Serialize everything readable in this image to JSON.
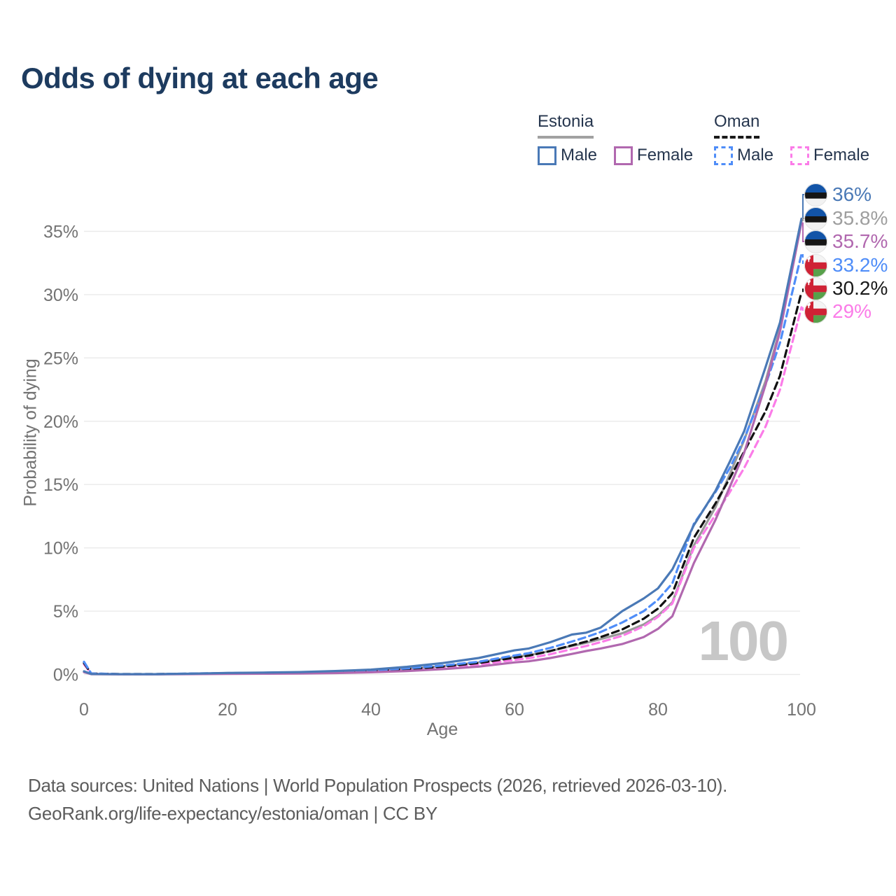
{
  "title": "Odds of dying at each age",
  "watermark": "100",
  "legend": {
    "groups": [
      {
        "name": "Estonia",
        "line_style": "solid",
        "items": [
          {
            "label": "Male",
            "color": "#4a79b6"
          },
          {
            "label": "Female",
            "color": "#b168af"
          }
        ]
      },
      {
        "name": "Oman",
        "line_style": "dashed",
        "items": [
          {
            "label": "Male",
            "color": "#4f8df8"
          },
          {
            "label": "Female",
            "color": "#fb7ce8"
          }
        ]
      }
    ]
  },
  "chart_data": {
    "type": "line",
    "title": "Odds of dying at each age",
    "xlabel": "Age",
    "ylabel": "Probability of dying",
    "xlim": [
      0,
      100
    ],
    "ylim": [
      0,
      38
    ],
    "x_ticks": [
      0,
      20,
      40,
      60,
      80,
      100
    ],
    "y_ticks": [
      0,
      5,
      10,
      15,
      20,
      25,
      30,
      35
    ],
    "y_tick_suffix": "%",
    "grid": "horizontal",
    "legend_position": "top-right",
    "x": [
      0,
      1,
      5,
      10,
      15,
      20,
      25,
      30,
      35,
      40,
      45,
      50,
      55,
      60,
      62,
      65,
      68,
      70,
      72,
      75,
      78,
      80,
      82,
      85,
      88,
      90,
      92,
      95,
      97,
      100
    ],
    "series": [
      {
        "name": "Estonia Male",
        "country": "Estonia",
        "sex": "Male",
        "color": "#4a79b6",
        "label_color": "#4a79b6",
        "dash": "solid",
        "flag": "estonia",
        "end_label": "36%",
        "values": [
          0.25,
          0.04,
          0.02,
          0.02,
          0.06,
          0.12,
          0.15,
          0.19,
          0.27,
          0.38,
          0.6,
          0.9,
          1.3,
          1.9,
          2.05,
          2.55,
          3.15,
          3.3,
          3.7,
          5.0,
          6.0,
          6.8,
          8.3,
          11.8,
          14.5,
          16.8,
          19.2,
          24.3,
          27.8,
          36.0
        ]
      },
      {
        "name": "Estonia Both sexes",
        "country": "Estonia",
        "sex": "Both",
        "color": "#9a9a9a",
        "label_color": "#9e9e9e",
        "dash": "solid",
        "flag": "estonia",
        "end_label": "35.8%",
        "values": [
          0.22,
          0.03,
          0.02,
          0.02,
          0.05,
          0.08,
          0.1,
          0.13,
          0.18,
          0.28,
          0.44,
          0.65,
          0.95,
          1.4,
          1.52,
          1.85,
          2.25,
          2.5,
          2.8,
          3.25,
          3.95,
          4.65,
          5.7,
          10.2,
          13.2,
          15.8,
          18.5,
          23.2,
          27.3,
          35.8
        ]
      },
      {
        "name": "Estonia Female",
        "country": "Estonia",
        "sex": "Female",
        "color": "#b168af",
        "label_color": "#b168af",
        "dash": "solid",
        "flag": "estonia",
        "end_label": "35.7%",
        "values": [
          0.18,
          0.03,
          0.01,
          0.01,
          0.03,
          0.05,
          0.06,
          0.08,
          0.11,
          0.17,
          0.27,
          0.42,
          0.62,
          0.95,
          1.04,
          1.3,
          1.62,
          1.85,
          2.05,
          2.4,
          2.95,
          3.6,
          4.6,
          8.8,
          12.2,
          14.8,
          17.5,
          22.9,
          27.1,
          35.7
        ]
      },
      {
        "name": "Oman Male",
        "country": "Oman",
        "sex": "Male",
        "color": "#4f8df8",
        "label_color": "#4f8df8",
        "dash": "dashed",
        "flag": "oman",
        "end_label": "33.2%",
        "values": [
          1.0,
          0.08,
          0.03,
          0.03,
          0.07,
          0.11,
          0.13,
          0.16,
          0.22,
          0.32,
          0.48,
          0.7,
          1.0,
          1.5,
          1.68,
          2.1,
          2.6,
          2.95,
          3.35,
          4.1,
          5.0,
          5.9,
          7.2,
          11.9,
          14.4,
          16.3,
          18.6,
          22.9,
          26.2,
          33.2
        ]
      },
      {
        "name": "Oman Both sexes",
        "country": "Oman",
        "sex": "Both",
        "color": "#111111",
        "label_color": "#1a1a1a",
        "dash": "dashed",
        "flag": "oman",
        "end_label": "30.2%",
        "values": [
          0.9,
          0.07,
          0.03,
          0.03,
          0.06,
          0.09,
          0.11,
          0.14,
          0.19,
          0.28,
          0.42,
          0.62,
          0.9,
          1.32,
          1.48,
          1.85,
          2.3,
          2.6,
          2.95,
          3.55,
          4.4,
          5.2,
          6.4,
          10.8,
          13.5,
          15.5,
          17.6,
          20.8,
          23.6,
          30.2
        ]
      },
      {
        "name": "Oman Female",
        "country": "Oman",
        "sex": "Female",
        "color": "#fb7ce8",
        "label_color": "#fb7ce8",
        "dash": "dashed",
        "flag": "oman",
        "end_label": "29%",
        "values": [
          0.8,
          0.06,
          0.02,
          0.02,
          0.05,
          0.07,
          0.09,
          0.11,
          0.15,
          0.23,
          0.35,
          0.52,
          0.78,
          1.15,
          1.28,
          1.6,
          2.0,
          2.25,
          2.55,
          3.05,
          3.8,
          4.55,
          5.6,
          10.0,
          12.6,
          14.4,
          16.3,
          19.6,
          22.5,
          29.0
        ]
      }
    ]
  },
  "footer": {
    "line1": "Data sources: United Nations | World Population Prospects (2026, retrieved 2026-03-10).",
    "line2": "GeoRank.org/life-expectancy/estonia/oman | CC BY"
  }
}
